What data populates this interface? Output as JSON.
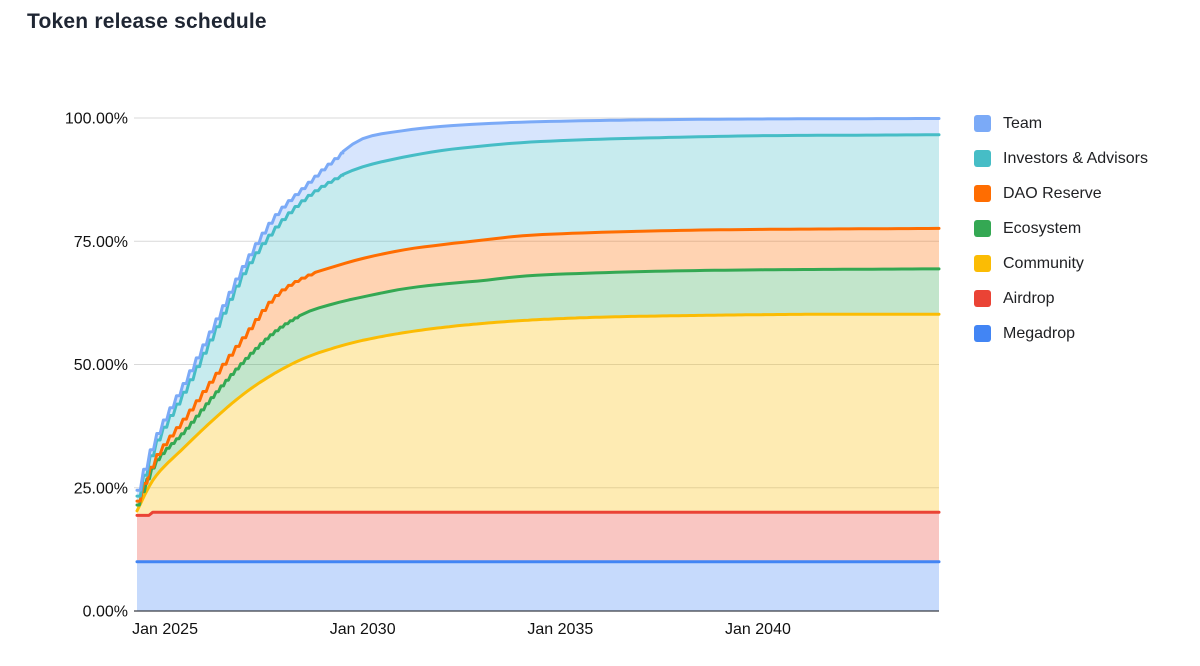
{
  "title": "Token release schedule",
  "chart_data": {
    "type": "area",
    "stacked": true,
    "title": "Token release schedule",
    "values_are": "cumulative_stack_top_percent",
    "x_axis": {
      "range": [
        2024.29,
        2044.58
      ],
      "ticks": [
        {
          "t": 2025,
          "label": "Jan 2025"
        },
        {
          "t": 2030,
          "label": "Jan 2030"
        },
        {
          "t": 2035,
          "label": "Jan 2035"
        },
        {
          "t": 2040,
          "label": "Jan 2040"
        }
      ]
    },
    "y_axis": {
      "range": [
        0,
        100
      ],
      "unit": "percent",
      "ticks": [
        {
          "v": 0,
          "label": "0.00%"
        },
        {
          "v": 25,
          "label": "25.00%"
        },
        {
          "v": 50,
          "label": "50.00%"
        },
        {
          "v": 75,
          "label": "75.00%"
        },
        {
          "v": 100,
          "label": "100.00%"
        }
      ]
    },
    "grid": true,
    "colors": {
      "gridline": "#d9d9d9",
      "axis_line": "#3b3f46",
      "tick_label": "#111111",
      "title": "#1f2633",
      "background": "#ffffff"
    },
    "series": [
      {
        "name": "Megadrop",
        "color": "#4285f4",
        "final_band_pct": 10,
        "interp": "linear",
        "points": [
          [
            2024.29,
            10
          ],
          [
            2044.58,
            10
          ]
        ]
      },
      {
        "name": "Airdrop",
        "color": "#ea4335",
        "final_band_pct": 10,
        "interp": "linear",
        "points": [
          [
            2024.29,
            19.4
          ],
          [
            2024.6,
            19.4
          ],
          [
            2024.68,
            20.05
          ],
          [
            2044.58,
            20.05
          ]
        ]
      },
      {
        "name": "Community",
        "color": "#fbbc04",
        "final_band_pct": 40.2,
        "points": [
          [
            2024.29,
            20.3
          ],
          [
            2024.75,
            27.2
          ],
          [
            2025.5,
            33.3
          ],
          [
            2026.25,
            39
          ],
          [
            2027,
            44.1
          ],
          [
            2027.75,
            48.1
          ],
          [
            2028.5,
            51.2
          ],
          [
            2029.25,
            53.3
          ],
          [
            2030,
            54.9
          ],
          [
            2031,
            56.4
          ],
          [
            2032,
            57.5
          ],
          [
            2033,
            58.3
          ],
          [
            2034.2,
            59
          ],
          [
            2036,
            59.6
          ],
          [
            2038,
            59.9
          ],
          [
            2040,
            60.1
          ],
          [
            2042,
            60.2
          ],
          [
            2044.58,
            60.2
          ]
        ]
      },
      {
        "name": "Ecosystem",
        "color": "#34a853",
        "final_band_pct": 9.2,
        "step": {
          "until": 2028.4,
          "w": 0.125
        },
        "points": [
          [
            2024.29,
            21.5
          ],
          [
            2024.75,
            30.2
          ],
          [
            2025.5,
            36.7
          ],
          [
            2026.25,
            44.1
          ],
          [
            2027,
            50.9
          ],
          [
            2027.75,
            56.6
          ],
          [
            2028.5,
            60.3
          ],
          [
            2029.25,
            62.3
          ],
          [
            2030,
            63.7
          ],
          [
            2031,
            65.3
          ],
          [
            2032,
            66.3
          ],
          [
            2033,
            67
          ],
          [
            2034.2,
            68
          ],
          [
            2036,
            68.6
          ],
          [
            2038,
            69
          ],
          [
            2040,
            69.2
          ],
          [
            2042,
            69.3
          ],
          [
            2044.58,
            69.4
          ]
        ]
      },
      {
        "name": "DAO Reserve",
        "color": "#ff6d01",
        "final_band_pct": 8.2,
        "step": {
          "until": 2028.8,
          "w": 0.1667
        },
        "points": [
          [
            2024.29,
            22.3
          ],
          [
            2024.75,
            31.2
          ],
          [
            2025.5,
            39.4
          ],
          [
            2026.25,
            47.8
          ],
          [
            2027,
            55.9
          ],
          [
            2027.75,
            63.7
          ],
          [
            2028.5,
            67.7
          ],
          [
            2029.25,
            69.8
          ],
          [
            2030,
            71.5
          ],
          [
            2031,
            73.2
          ],
          [
            2032,
            74.3
          ],
          [
            2033,
            75.2
          ],
          [
            2034.2,
            76.2
          ],
          [
            2036,
            76.8
          ],
          [
            2038,
            77.2
          ],
          [
            2040,
            77.4
          ],
          [
            2042,
            77.5
          ],
          [
            2044.58,
            77.6
          ]
        ]
      },
      {
        "name": "Investors & Advisors",
        "color": "#46bdc6",
        "final_band_pct": 19,
        "step": {
          "until": 2029.5,
          "w": 0.1667
        },
        "points": [
          [
            2024.29,
            23.3
          ],
          [
            2024.75,
            34
          ],
          [
            2025.5,
            45
          ],
          [
            2026.25,
            57
          ],
          [
            2027,
            69
          ],
          [
            2027.75,
            77.5
          ],
          [
            2028.5,
            83.5
          ],
          [
            2029.25,
            87.5
          ],
          [
            2030,
            90.1
          ],
          [
            2031,
            92
          ],
          [
            2032,
            93.4
          ],
          [
            2033,
            94.3
          ],
          [
            2034.2,
            95.1
          ],
          [
            2036,
            95.7
          ],
          [
            2038,
            96.1
          ],
          [
            2040,
            96.4
          ],
          [
            2042,
            96.5
          ],
          [
            2044.58,
            96.6
          ]
        ]
      },
      {
        "name": "Team",
        "color": "#7baaf7",
        "final_band_pct": 3.3,
        "step": {
          "until": 2029.5,
          "w": 0.1667
        },
        "points": [
          [
            2024.29,
            24.5
          ],
          [
            2024.75,
            35.3
          ],
          [
            2025.5,
            46.8
          ],
          [
            2026.25,
            58.6
          ],
          [
            2027,
            70.5
          ],
          [
            2027.75,
            80
          ],
          [
            2028.5,
            86
          ],
          [
            2029.25,
            91.5
          ],
          [
            2030,
            95.8
          ],
          [
            2031,
            97.4
          ],
          [
            2032,
            98.3
          ],
          [
            2033,
            98.8
          ],
          [
            2034.2,
            99.2
          ],
          [
            2036,
            99.5
          ],
          [
            2038,
            99.7
          ],
          [
            2040,
            99.8
          ],
          [
            2042,
            99.85
          ],
          [
            2044.58,
            99.9
          ]
        ]
      }
    ],
    "legend": {
      "position": "right",
      "items": [
        {
          "label": "Team",
          "color": "#7baaf7"
        },
        {
          "label": "Investors & Advisors",
          "color": "#46bdc6"
        },
        {
          "label": "DAO Reserve",
          "color": "#ff6d01"
        },
        {
          "label": "Ecosystem",
          "color": "#34a853"
        },
        {
          "label": "Community",
          "color": "#fbbc04"
        },
        {
          "label": "Airdrop",
          "color": "#ea4335"
        },
        {
          "label": "Megadrop",
          "color": "#4285f4"
        }
      ]
    }
  }
}
